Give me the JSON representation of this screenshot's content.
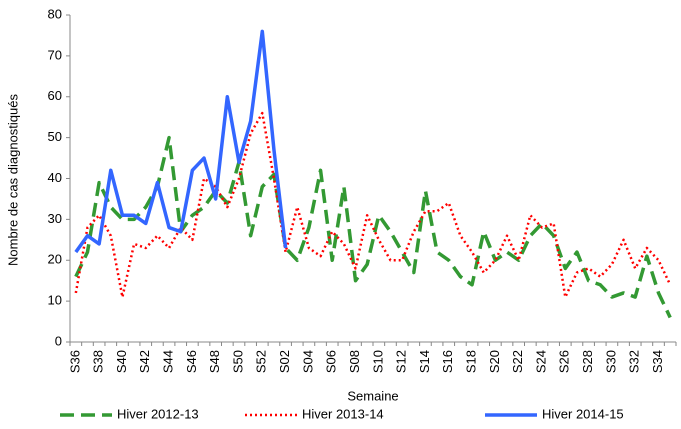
{
  "chart_data": {
    "type": "line",
    "y_label": "Nombre de cas diagnostiqués",
    "x_label": "Semaine",
    "categories": [
      "S36",
      null,
      "S38",
      null,
      "S40",
      null,
      "S42",
      null,
      "S44",
      null,
      "S46",
      null,
      "S48",
      null,
      "S50",
      null,
      "S52",
      null,
      "S02",
      null,
      "S04",
      null,
      "S06",
      null,
      "S08",
      null,
      "S10",
      null,
      "S12",
      null,
      "S14",
      null,
      "S16",
      null,
      "S18",
      null,
      "S20",
      null,
      "S22",
      null,
      "S24",
      null,
      "S26",
      null,
      "S28",
      null,
      "S30",
      null,
      "S32",
      null,
      "S34",
      null
    ],
    "series": [
      {
        "name": "Hiver 2012-13",
        "color": "#339933",
        "style": "dashed",
        "values": [
          16,
          22,
          39,
          33,
          30,
          30,
          33,
          38,
          50,
          27,
          31,
          33,
          37,
          34,
          44,
          26,
          38,
          41,
          23,
          20,
          28,
          42,
          20,
          38,
          15,
          19,
          31,
          27,
          22,
          17,
          37,
          22,
          20,
          16,
          14,
          27,
          20,
          22,
          20,
          26,
          29,
          26,
          18,
          22,
          15,
          14,
          11,
          12,
          11,
          21,
          12,
          6
        ]
      },
      {
        "name": "Hiver 2013-14",
        "color": "#ff0000",
        "style": "dotted",
        "values": [
          12,
          28,
          31,
          26,
          11,
          24,
          23,
          26,
          23,
          28,
          25,
          40,
          38,
          33,
          40,
          51,
          56,
          40,
          22,
          33,
          23,
          21,
          27,
          24,
          18,
          31,
          25,
          20,
          20,
          27,
          32,
          32,
          34,
          26,
          22,
          17,
          20,
          26,
          20,
          31,
          28,
          29,
          11,
          17,
          18,
          16,
          19,
          25,
          18,
          23,
          20,
          14
        ]
      },
      {
        "name": "Hiver 2014-15",
        "color": "#3366ff",
        "style": "solid",
        "values": [
          22,
          26,
          24,
          42,
          31,
          31,
          29,
          39,
          28,
          27,
          42,
          45,
          35,
          60,
          44,
          54,
          76,
          47,
          23,
          null,
          null,
          null,
          null,
          null,
          null,
          null,
          null,
          null,
          null,
          null,
          null,
          null,
          null,
          null,
          null,
          null,
          null,
          null,
          null,
          null,
          null,
          null,
          null,
          null,
          null,
          null,
          null,
          null,
          null,
          null,
          null,
          null
        ]
      }
    ],
    "ylim": [
      0,
      80
    ],
    "yticks": [
      0,
      10,
      20,
      30,
      40,
      50,
      60,
      70,
      80
    ],
    "grid": false
  }
}
